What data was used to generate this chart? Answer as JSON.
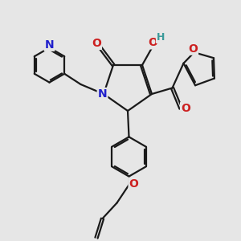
{
  "bg_color": "#e6e6e6",
  "bond_color": "#1a1a1a",
  "bond_width": 1.6,
  "N_color": "#2020cc",
  "O_color": "#cc2020",
  "H_color": "#3a9a9a",
  "figsize": [
    3.0,
    3.0
  ],
  "dpi": 100,
  "xlim": [
    0,
    10
  ],
  "ylim": [
    0,
    10
  ]
}
